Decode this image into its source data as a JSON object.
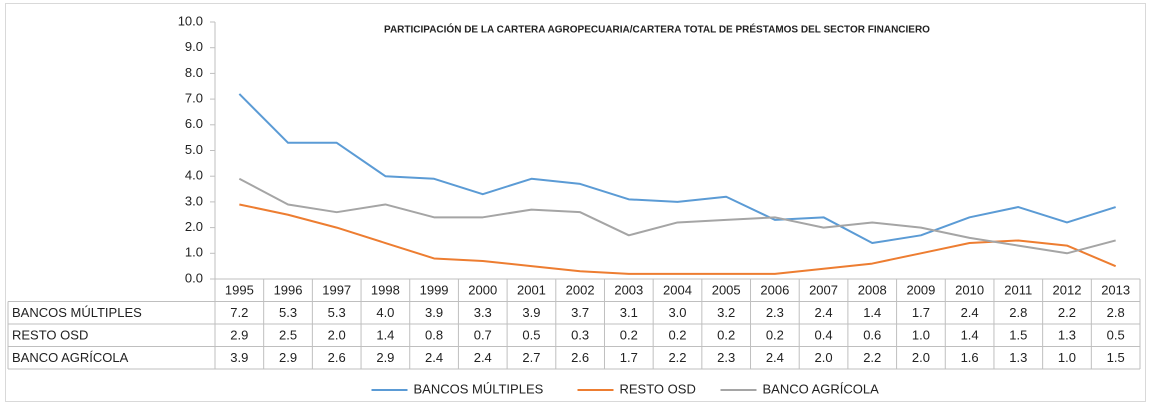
{
  "chart_data": {
    "type": "line",
    "title": "PARTICIPACIÓN DE LA CARTERA AGROPECUARIA/CARTERA TOTAL DE PRÉSTAMOS DEL SECTOR FINANCIERO",
    "categories": [
      "1995",
      "1996",
      "1997",
      "1998",
      "1999",
      "2000",
      "2001",
      "2002",
      "2003",
      "2004",
      "2005",
      "2006",
      "2007",
      "2008",
      "2009",
      "2010",
      "2011",
      "2012",
      "2013"
    ],
    "series": [
      {
        "name": "BANCOS MÚLTIPLES",
        "color": "#5b9bd5",
        "values": [
          7.2,
          5.3,
          5.3,
          4.0,
          3.9,
          3.3,
          3.9,
          3.7,
          3.1,
          3.0,
          3.2,
          2.3,
          2.4,
          1.4,
          1.7,
          2.4,
          2.8,
          2.2,
          2.8
        ],
        "value_labels": [
          "7.2",
          "5.3",
          "5.3",
          "4.0",
          "3.9",
          "3.3",
          "3.9",
          "3.7",
          "3.1",
          "3.0",
          "3.2",
          "2.3",
          "2.4",
          "1.4",
          "1.7",
          "2.4",
          "2.8",
          "2.2",
          "2.8"
        ]
      },
      {
        "name": "RESTO OSD",
        "color": "#ed7d31",
        "values": [
          2.9,
          2.5,
          2.0,
          1.4,
          0.8,
          0.7,
          0.5,
          0.3,
          0.2,
          0.2,
          0.2,
          0.2,
          0.4,
          0.6,
          1.0,
          1.4,
          1.5,
          1.3,
          0.5
        ],
        "value_labels": [
          "2.9",
          "2.5",
          "2.0",
          "1.4",
          "0.8",
          "0.7",
          "0.5",
          "0.3",
          "0.2",
          "0.2",
          "0.2",
          "0.2",
          "0.4",
          "0.6",
          "1.0",
          "1.4",
          "1.5",
          "1.3",
          "0.5"
        ]
      },
      {
        "name": "BANCO AGRÍCOLA",
        "color": "#a5a5a5",
        "values": [
          3.9,
          2.9,
          2.6,
          2.9,
          2.4,
          2.4,
          2.7,
          2.6,
          1.7,
          2.2,
          2.3,
          2.4,
          2.0,
          2.2,
          2.0,
          1.6,
          1.3,
          1.0,
          1.5
        ],
        "value_labels": [
          "3.9",
          "2.9",
          "2.6",
          "2.9",
          "2.4",
          "2.4",
          "2.7",
          "2.6",
          "1.7",
          "2.2",
          "2.3",
          "2.4",
          "2.0",
          "2.2",
          "2.0",
          "1.6",
          "1.3",
          "1.0",
          "1.5"
        ]
      }
    ],
    "ylim": [
      0,
      10
    ],
    "yticks": [
      {
        "value": 0,
        "label": "0.0"
      },
      {
        "value": 1,
        "label": "1.0"
      },
      {
        "value": 2,
        "label": "2.0"
      },
      {
        "value": 3,
        "label": "3.0"
      },
      {
        "value": 4,
        "label": "4.0"
      },
      {
        "value": 5,
        "label": "5.0"
      },
      {
        "value": 6,
        "label": "6.0"
      },
      {
        "value": 7,
        "label": "7.0"
      },
      {
        "value": 8,
        "label": "8.0"
      },
      {
        "value": 9,
        "label": "9.0"
      },
      {
        "value": 10,
        "label": "10.0"
      }
    ],
    "grid": false,
    "legend": "bottom"
  }
}
